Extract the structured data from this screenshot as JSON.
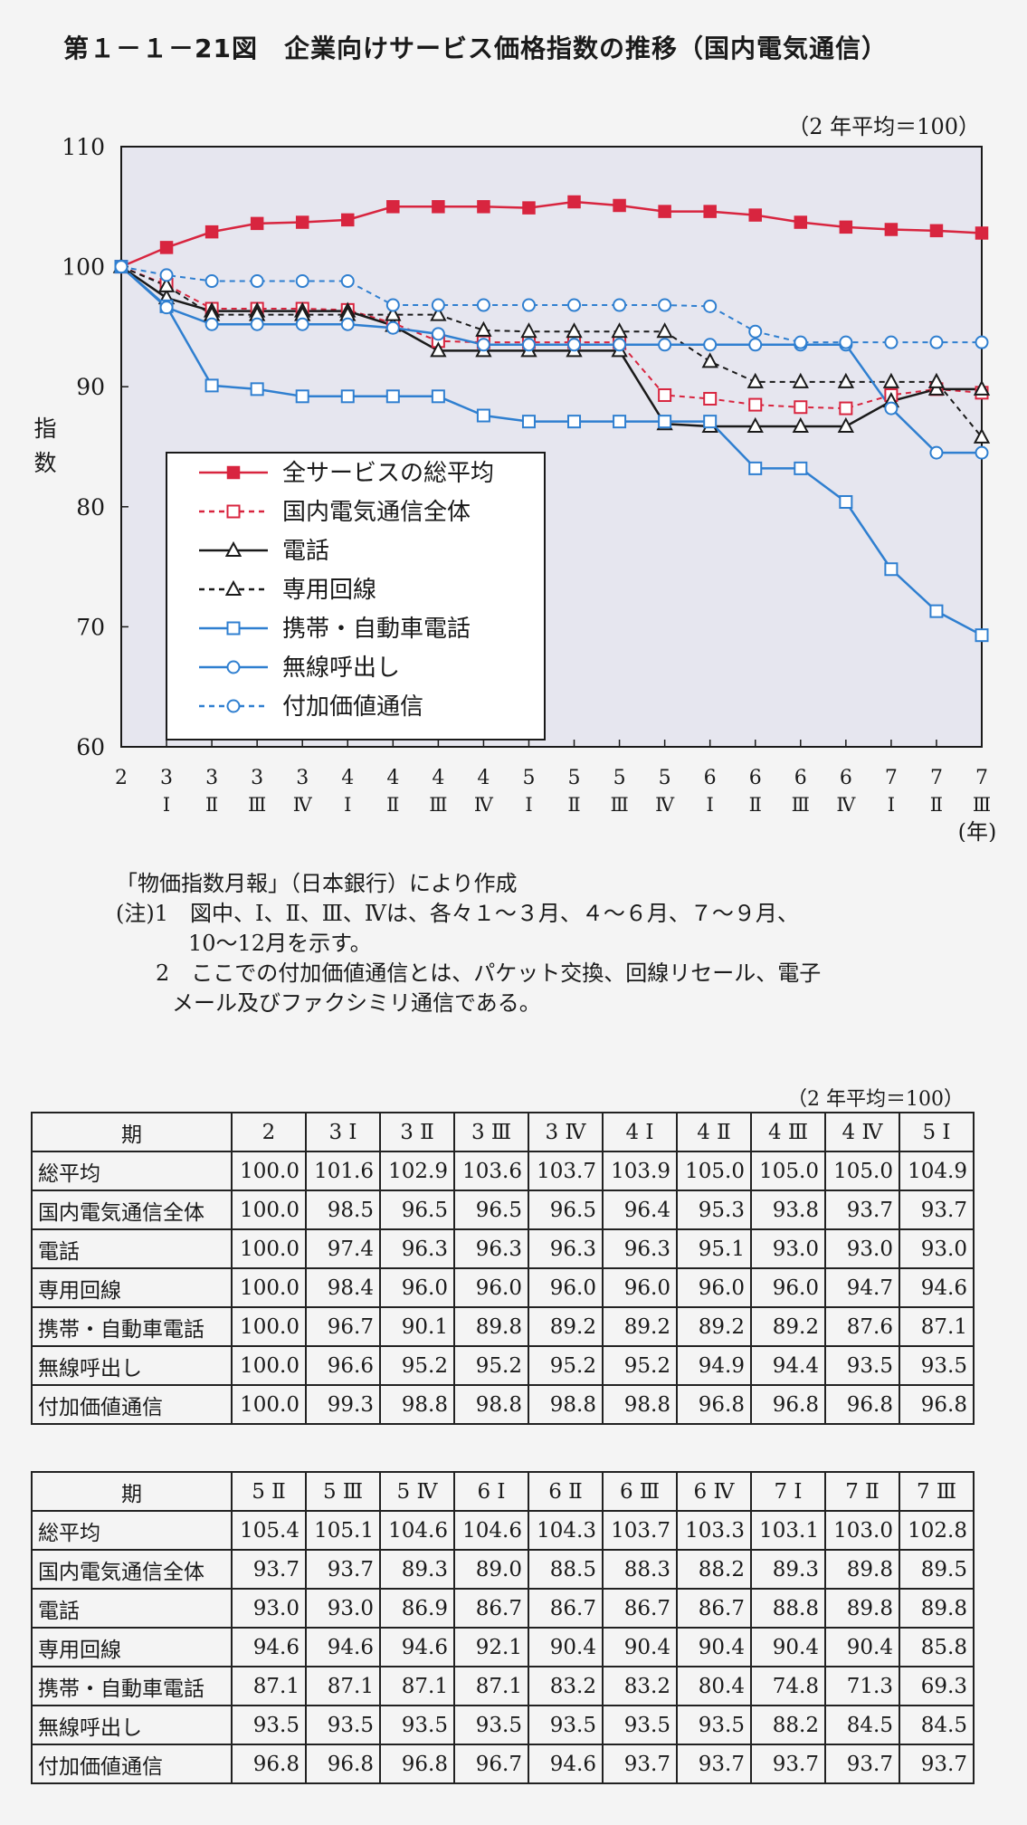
{
  "title": "第１－１－21図　企業向けサービス価格指数の推移（国内電気通信）",
  "chart_data": {
    "type": "line",
    "unit_note": "（2 年平均＝100）",
    "ylabel": "指\n数",
    "xunit": "(年)",
    "ylim": [
      60,
      110
    ],
    "yticks": [
      60,
      70,
      80,
      90,
      100,
      110
    ],
    "grid": false,
    "legend_position": "bottom-left",
    "categories": [
      {
        "year": "2",
        "q": ""
      },
      {
        "year": "3",
        "q": "Ⅰ"
      },
      {
        "year": "3",
        "q": "Ⅱ"
      },
      {
        "year": "3",
        "q": "Ⅲ"
      },
      {
        "year": "3",
        "q": "Ⅳ"
      },
      {
        "year": "4",
        "q": "Ⅰ"
      },
      {
        "year": "4",
        "q": "Ⅱ"
      },
      {
        "year": "4",
        "q": "Ⅲ"
      },
      {
        "year": "4",
        "q": "Ⅳ"
      },
      {
        "year": "5",
        "q": "Ⅰ"
      },
      {
        "year": "5",
        "q": "Ⅱ"
      },
      {
        "year": "5",
        "q": "Ⅲ"
      },
      {
        "year": "5",
        "q": "Ⅳ"
      },
      {
        "year": "6",
        "q": "Ⅰ"
      },
      {
        "year": "6",
        "q": "Ⅱ"
      },
      {
        "year": "6",
        "q": "Ⅲ"
      },
      {
        "year": "6",
        "q": "Ⅳ"
      },
      {
        "year": "7",
        "q": "Ⅰ"
      },
      {
        "year": "7",
        "q": "Ⅱ"
      },
      {
        "year": "7",
        "q": "Ⅲ"
      }
    ],
    "series": [
      {
        "name": "全サービスの総平均",
        "color": "#d8253f",
        "dash": "",
        "marker": "square-filled",
        "values": [
          100.0,
          101.6,
          102.9,
          103.6,
          103.7,
          103.9,
          105.0,
          105.0,
          105.0,
          104.9,
          105.4,
          105.1,
          104.6,
          104.6,
          104.3,
          103.7,
          103.3,
          103.1,
          103.0,
          102.8
        ]
      },
      {
        "name": "国内電気通信全体",
        "color": "#d8253f",
        "dash": "6,5",
        "marker": "square-open",
        "values": [
          100.0,
          98.5,
          96.5,
          96.5,
          96.5,
          96.4,
          95.3,
          93.8,
          93.7,
          93.7,
          93.7,
          93.7,
          89.3,
          89.0,
          88.5,
          88.3,
          88.2,
          89.3,
          89.8,
          89.5
        ]
      },
      {
        "name": "電話",
        "color": "#1a1a1a",
        "dash": "",
        "marker": "triangle-open",
        "values": [
          100.0,
          97.4,
          96.3,
          96.3,
          96.3,
          96.3,
          95.1,
          93.0,
          93.0,
          93.0,
          93.0,
          93.0,
          86.9,
          86.7,
          86.7,
          86.7,
          86.7,
          88.8,
          89.8,
          89.8
        ]
      },
      {
        "name": "専用回線",
        "color": "#1a1a1a",
        "dash": "6,5",
        "marker": "triangle-open",
        "values": [
          100.0,
          98.4,
          96.0,
          96.0,
          96.0,
          96.0,
          96.0,
          96.0,
          94.7,
          94.6,
          94.6,
          94.6,
          94.6,
          92.1,
          90.4,
          90.4,
          90.4,
          90.4,
          90.4,
          85.8
        ]
      },
      {
        "name": "携帯・自動車電話",
        "color": "#2f7fd0",
        "dash": "",
        "marker": "square-open",
        "values": [
          100.0,
          96.7,
          90.1,
          89.8,
          89.2,
          89.2,
          89.2,
          89.2,
          87.6,
          87.1,
          87.1,
          87.1,
          87.1,
          87.1,
          83.2,
          83.2,
          80.4,
          74.8,
          71.3,
          69.3
        ]
      },
      {
        "name": "無線呼出し",
        "color": "#2f7fd0",
        "dash": "",
        "marker": "circle-open",
        "values": [
          100.0,
          96.6,
          95.2,
          95.2,
          95.2,
          95.2,
          94.9,
          94.4,
          93.5,
          93.5,
          93.5,
          93.5,
          93.5,
          93.5,
          93.5,
          93.5,
          93.5,
          88.2,
          84.5,
          84.5
        ]
      },
      {
        "name": "付加価値通信",
        "color": "#2f7fd0",
        "dash": "6,5",
        "marker": "circle-open",
        "values": [
          100.0,
          99.3,
          98.8,
          98.8,
          98.8,
          98.8,
          96.8,
          96.8,
          96.8,
          96.8,
          96.8,
          96.8,
          96.8,
          96.7,
          94.6,
          93.7,
          93.7,
          93.7,
          93.7,
          93.7
        ]
      }
    ]
  },
  "notes": {
    "source": "「物価指数月報」（日本銀行）により作成",
    "note1a": "(注)1　図中、Ⅰ、Ⅱ、Ⅲ、Ⅳは、各々１～３月、４～６月、７～９月、",
    "note1b": "10～12月を示す。",
    "note2a": "2　ここでの付加価値通信とは、パケット交換、回線リセール、電子",
    "note2b": "メール及びファクシミリ通信である。"
  },
  "table": {
    "unit_note": "（2 年平均＝100）",
    "period_header": "期",
    "rows": [
      "総平均",
      "国内電気通信全体",
      "電話",
      "専用回線",
      "携帯・自動車電話",
      "無線呼出し",
      "付加価値通信"
    ],
    "part1": {
      "headers": [
        "2",
        "3 Ⅰ",
        "3 Ⅱ",
        "3 Ⅲ",
        "3 Ⅳ",
        "4 Ⅰ",
        "4 Ⅱ",
        "4 Ⅲ",
        "4 Ⅳ",
        "5 Ⅰ"
      ],
      "values": [
        [
          "100.0",
          "101.6",
          "102.9",
          "103.6",
          "103.7",
          "103.9",
          "105.0",
          "105.0",
          "105.0",
          "104.9"
        ],
        [
          "100.0",
          "98.5",
          "96.5",
          "96.5",
          "96.5",
          "96.4",
          "95.3",
          "93.8",
          "93.7",
          "93.7"
        ],
        [
          "100.0",
          "97.4",
          "96.3",
          "96.3",
          "96.3",
          "96.3",
          "95.1",
          "93.0",
          "93.0",
          "93.0"
        ],
        [
          "100.0",
          "98.4",
          "96.0",
          "96.0",
          "96.0",
          "96.0",
          "96.0",
          "96.0",
          "94.7",
          "94.6"
        ],
        [
          "100.0",
          "96.7",
          "90.1",
          "89.8",
          "89.2",
          "89.2",
          "89.2",
          "89.2",
          "87.6",
          "87.1"
        ],
        [
          "100.0",
          "96.6",
          "95.2",
          "95.2",
          "95.2",
          "95.2",
          "94.9",
          "94.4",
          "93.5",
          "93.5"
        ],
        [
          "100.0",
          "99.3",
          "98.8",
          "98.8",
          "98.8",
          "98.8",
          "96.8",
          "96.8",
          "96.8",
          "96.8"
        ]
      ]
    },
    "part2": {
      "headers": [
        "5 Ⅱ",
        "5 Ⅲ",
        "5 Ⅳ",
        "6 Ⅰ",
        "6 Ⅱ",
        "6 Ⅲ",
        "6 Ⅳ",
        "7 Ⅰ",
        "7 Ⅱ",
        "7 Ⅲ"
      ],
      "values": [
        [
          "105.4",
          "105.1",
          "104.6",
          "104.6",
          "104.3",
          "103.7",
          "103.3",
          "103.1",
          "103.0",
          "102.8"
        ],
        [
          "93.7",
          "93.7",
          "89.3",
          "89.0",
          "88.5",
          "88.3",
          "88.2",
          "89.3",
          "89.8",
          "89.5"
        ],
        [
          "93.0",
          "93.0",
          "86.9",
          "86.7",
          "86.7",
          "86.7",
          "86.7",
          "88.8",
          "89.8",
          "89.8"
        ],
        [
          "94.6",
          "94.6",
          "94.6",
          "92.1",
          "90.4",
          "90.4",
          "90.4",
          "90.4",
          "90.4",
          "85.8"
        ],
        [
          "87.1",
          "87.1",
          "87.1",
          "87.1",
          "83.2",
          "83.2",
          "80.4",
          "74.8",
          "71.3",
          "69.3"
        ],
        [
          "93.5",
          "93.5",
          "93.5",
          "93.5",
          "93.5",
          "93.5",
          "93.5",
          "88.2",
          "84.5",
          "84.5"
        ],
        [
          "96.8",
          "96.8",
          "96.8",
          "96.7",
          "94.6",
          "93.7",
          "93.7",
          "93.7",
          "93.7",
          "93.7"
        ]
      ]
    }
  }
}
